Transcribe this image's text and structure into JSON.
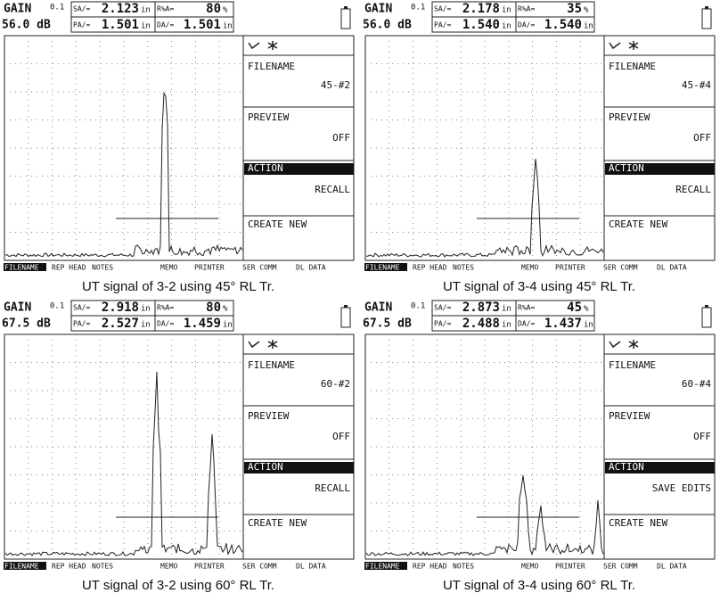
{
  "panels": [
    {
      "gain_label": "GAIN",
      "gain_step": "0.1",
      "gain": "56.0 dB",
      "sa_label": "SA/=",
      "sa": "2.123",
      "sa_unit": "in",
      "ra_label": "R%A=",
      "ra": "80",
      "ra_unit": "%",
      "pa_label": "PA/=",
      "pa": "1.501",
      "pa_unit": "in",
      "da_label": "DA/=",
      "da": "1.501",
      "da_unit": "in",
      "menu": [
        {
          "label": "FILENAME",
          "value": "45-#2"
        },
        {
          "label": "PREVIEW",
          "value": "OFF"
        },
        {
          "label": "ACTION",
          "value": "RECALL"
        },
        {
          "label": "CREATE NEW"
        }
      ],
      "softkeys": [
        "FILENAME",
        "REP HEAD",
        "NOTES",
        "MEMO",
        "PRINTER",
        "SER COMM",
        "DL DATA"
      ],
      "caption": "UT signal of 3-2 using 45° RL Tr."
    },
    {
      "gain_label": "GAIN",
      "gain_step": "0.1",
      "gain": "56.0 dB",
      "sa_label": "SA/=",
      "sa": "2.178",
      "sa_unit": "in",
      "ra_label": "R%A=",
      "ra": "35",
      "ra_unit": "%",
      "pa_label": "PA/=",
      "pa": "1.540",
      "pa_unit": "in",
      "da_label": "DA/=",
      "da": "1.540",
      "da_unit": "in",
      "menu": [
        {
          "label": "FILENAME",
          "value": "45-#4"
        },
        {
          "label": "PREVIEW",
          "value": "OFF"
        },
        {
          "label": "ACTION",
          "value": "RECALL"
        },
        {
          "label": "CREATE NEW"
        }
      ],
      "softkeys": [
        "FILENAME",
        "REP HEAD",
        "NOTES",
        "MEMO",
        "PRINTER",
        "SER COMM",
        "DL DATA"
      ],
      "caption": "UT signal of 3-4 using 45° RL Tr."
    },
    {
      "gain_label": "GAIN",
      "gain_step": "0.1",
      "gain": "67.5 dB",
      "sa_label": "SA/=",
      "sa": "2.918",
      "sa_unit": "in",
      "ra_label": "R%A=",
      "ra": "80",
      "ra_unit": "%",
      "pa_label": "PA/=",
      "pa": "2.527",
      "pa_unit": "in",
      "da_label": "DA/=",
      "da": "1.459",
      "da_unit": "in",
      "menu": [
        {
          "label": "FILENAME",
          "value": "60-#2"
        },
        {
          "label": "PREVIEW",
          "value": "OFF"
        },
        {
          "label": "ACTION",
          "value": "RECALL"
        },
        {
          "label": "CREATE NEW"
        }
      ],
      "softkeys": [
        "FILENAME",
        "REP HEAD",
        "NOTES",
        "MEMO",
        "PRINTER",
        "SER COMM",
        "DL DATA"
      ],
      "caption": "UT signal of 3-2 using 60° RL Tr."
    },
    {
      "gain_label": "GAIN",
      "gain_step": "0.1",
      "gain": "67.5 dB",
      "sa_label": "SA/=",
      "sa": "2.873",
      "sa_unit": "in",
      "ra_label": "R%A=",
      "ra": "45",
      "ra_unit": "%",
      "pa_label": "PA/=",
      "pa": "2.488",
      "pa_unit": "in",
      "da_label": "DA/=",
      "da": "1.437",
      "da_unit": "in",
      "menu": [
        {
          "label": "FILENAME",
          "value": "60-#4"
        },
        {
          "label": "PREVIEW",
          "value": "OFF"
        },
        {
          "label": "ACTION",
          "value": "SAVE EDITS"
        },
        {
          "label": "CREATE NEW"
        }
      ],
      "softkeys": [
        "FILENAME",
        "REP HEAD",
        "NOTES",
        "MEMO",
        "PRINTER",
        "SER COMM",
        "DL DATA"
      ],
      "caption": "UT signal of 3-4 using 60° RL Tr."
    }
  ]
}
